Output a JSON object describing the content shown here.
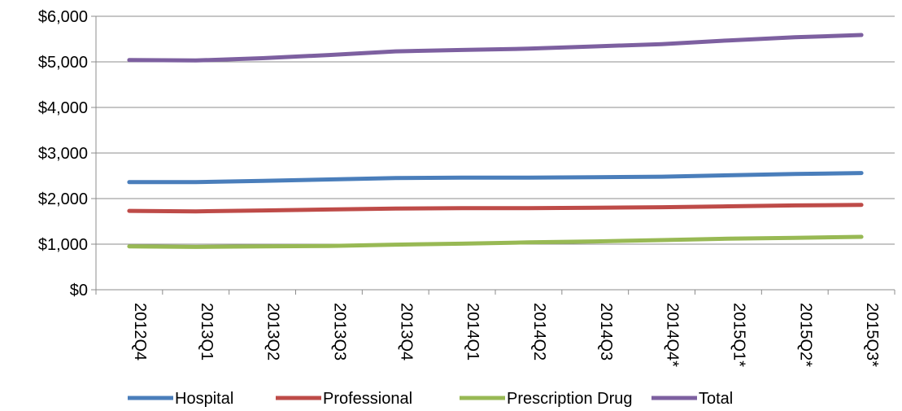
{
  "chart_data": {
    "type": "line",
    "title": "",
    "xlabel": "",
    "ylabel": "",
    "categories": [
      "2012Q4",
      "2013Q1",
      "2013Q2",
      "2013Q3",
      "2013Q4",
      "2014Q1",
      "2014Q2",
      "2014Q3",
      "2014Q4*",
      "2015Q1*",
      "2015Q2*",
      "2015Q3*"
    ],
    "ylim": [
      0,
      6000
    ],
    "y_ticks": [
      0,
      1000,
      2000,
      3000,
      4000,
      5000,
      6000
    ],
    "y_tick_labels": [
      "$0",
      "$1,000",
      "$2,000",
      "$3,000",
      "$4,000",
      "$5,000",
      "$6,000"
    ],
    "grid": true,
    "legend_position": "bottom",
    "series": [
      {
        "name": "Hospital",
        "color": "#4a7ebb",
        "values": [
          2360,
          2360,
          2390,
          2420,
          2450,
          2460,
          2460,
          2470,
          2480,
          2510,
          2540,
          2560
        ]
      },
      {
        "name": "Professional",
        "color": "#be4b48",
        "values": [
          1730,
          1720,
          1740,
          1760,
          1780,
          1790,
          1790,
          1800,
          1810,
          1830,
          1850,
          1860
        ]
      },
      {
        "name": "Prescription Drug",
        "color": "#98b954",
        "values": [
          950,
          940,
          950,
          960,
          990,
          1010,
          1040,
          1060,
          1090,
          1120,
          1140,
          1160
        ]
      },
      {
        "name": "Total",
        "color": "#7d60a0",
        "values": [
          5040,
          5030,
          5080,
          5150,
          5230,
          5260,
          5290,
          5340,
          5390,
          5470,
          5540,
          5590
        ]
      }
    ]
  }
}
